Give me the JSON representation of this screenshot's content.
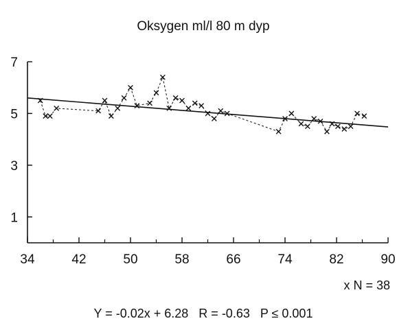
{
  "chart_data": {
    "type": "scatter",
    "title": "Oksygen ml/l 80 m dyp",
    "xlim": [
      34,
      90
    ],
    "ylim": [
      0,
      7
    ],
    "xticks": [
      "34",
      "42",
      "50",
      "58",
      "66",
      "74",
      "82",
      "90"
    ],
    "yticks": [
      "1",
      "3",
      "5",
      "7"
    ],
    "grid": false,
    "series": [
      {
        "marker": "x",
        "line": "dotted",
        "points": [
          [
            36,
            5.5
          ],
          [
            36.8,
            4.9
          ],
          [
            37.5,
            4.9
          ],
          [
            38.5,
            5.2
          ],
          [
            45,
            5.1
          ],
          [
            46,
            5.5
          ],
          [
            47,
            4.9
          ],
          [
            48,
            5.2
          ],
          [
            49,
            5.6
          ],
          [
            50,
            6.0
          ],
          [
            51,
            5.3
          ],
          [
            53,
            5.4
          ],
          [
            54,
            5.8
          ],
          [
            55,
            6.4
          ],
          [
            56,
            5.2
          ],
          [
            57,
            5.6
          ],
          [
            58,
            5.5
          ],
          [
            59,
            5.2
          ],
          [
            60,
            5.4
          ],
          [
            61,
            5.3
          ],
          [
            62,
            5.0
          ],
          [
            63,
            4.8
          ],
          [
            64,
            5.1
          ],
          [
            65,
            5.0
          ],
          [
            73,
            4.3
          ],
          [
            74,
            4.8
          ],
          [
            75,
            5.0
          ],
          [
            76.5,
            4.6
          ],
          [
            77.5,
            4.5
          ],
          [
            78.5,
            4.8
          ],
          [
            79.5,
            4.7
          ],
          [
            80.5,
            4.3
          ],
          [
            81.3,
            4.6
          ],
          [
            82.2,
            4.5
          ],
          [
            83.2,
            4.4
          ],
          [
            84.2,
            4.5
          ],
          [
            85.2,
            5.0
          ],
          [
            86.3,
            4.9
          ]
        ]
      }
    ],
    "trendline": {
      "slope": -0.02,
      "intercept": 6.28
    },
    "annotations": {
      "n_label": "x N = 38",
      "equation": "Y = -0.02x + 6.28   R = -0.63   P ≤ 0.001"
    }
  }
}
